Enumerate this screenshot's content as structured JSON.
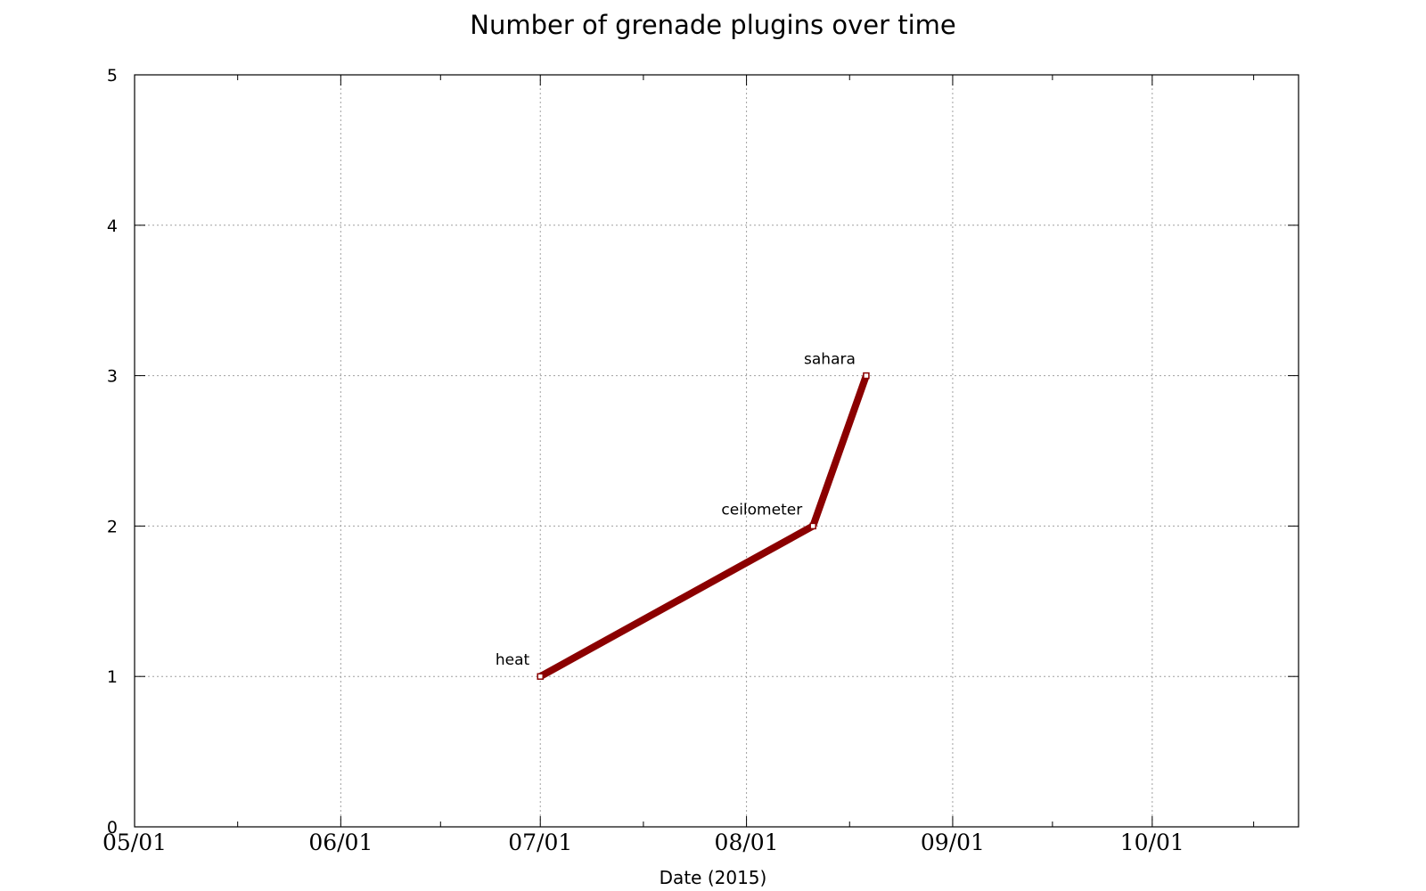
{
  "chart_data": {
    "type": "line",
    "title": "Number of grenade plugins over time",
    "xlabel": "Date (2015)",
    "ylabel": "",
    "x_tick_labels": [
      "05/01",
      "06/01",
      "07/01",
      "08/01",
      "09/01",
      "10/01"
    ],
    "x_tick_dates": [
      "2015-05-01",
      "2015-06-01",
      "2015-07-01",
      "2015-08-01",
      "2015-09-01",
      "2015-10-01"
    ],
    "xlim": [
      "2015-05-01",
      "2015-10-23"
    ],
    "y_tick_labels": [
      "0",
      "1",
      "2",
      "3",
      "4",
      "5"
    ],
    "y_tick_values": [
      0,
      1,
      2,
      3,
      4,
      5
    ],
    "ylim": [
      0,
      5
    ],
    "grid": true,
    "series": [
      {
        "color": "#8b0000",
        "points": [
          {
            "x": "2015-07-01",
            "y": 1,
            "label": "heat"
          },
          {
            "x": "2015-08-11",
            "y": 2,
            "label": "ceilometer"
          },
          {
            "x": "2015-08-19",
            "y": 3,
            "label": "sahara"
          }
        ]
      }
    ]
  }
}
